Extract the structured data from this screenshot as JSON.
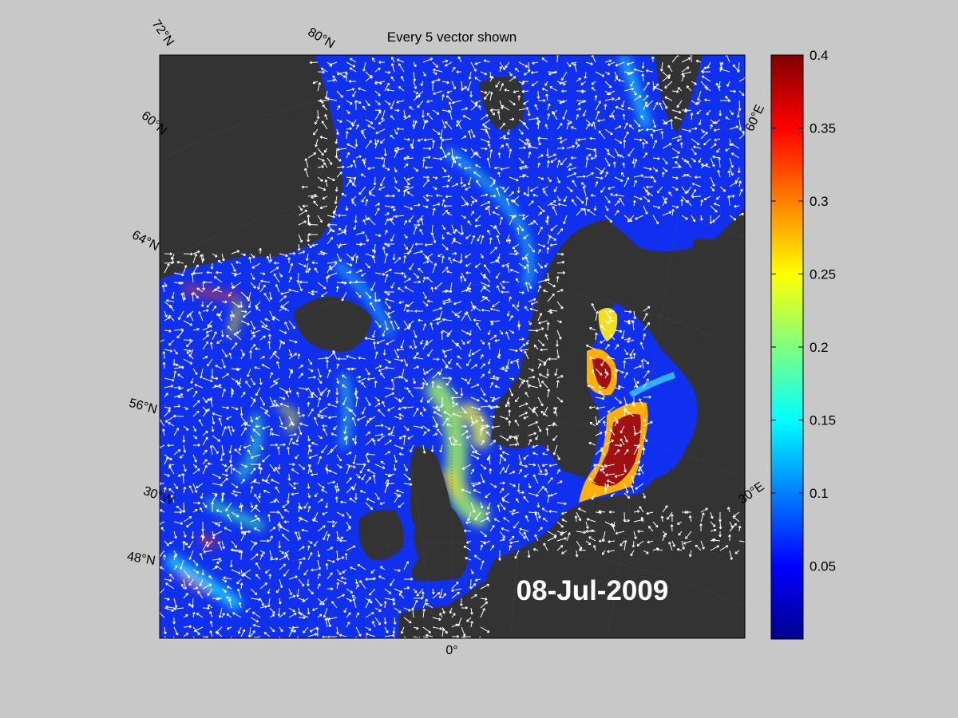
{
  "title": "Every 5 vector shown",
  "date_label": "08-Jul-2009",
  "lat_labels": [
    "72°N",
    "60°N",
    "64°N",
    "56°N",
    "48°N"
  ],
  "lon_labels": [
    "80°N",
    "30°W",
    "0°",
    "30°E",
    "60°E"
  ],
  "colorbar": {
    "ticks": [
      "0.4",
      "0.35",
      "0.3",
      "0.25",
      "0.2",
      "0.15",
      "0.1",
      "0.05"
    ],
    "min": 0,
    "max": 0.4,
    "colormap": "jet"
  },
  "colors": {
    "figure_background": "#c8c8c8",
    "land": "#333333",
    "ocean_base": "#1030f0",
    "vector": "#ffffff"
  }
}
